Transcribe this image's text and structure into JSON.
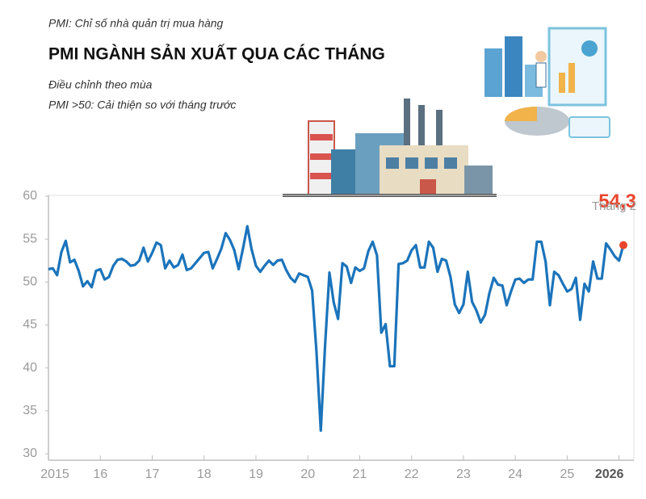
{
  "chart_data": {
    "type": "line",
    "note": "PMI: Chỉ số nhà quản trị mua hàng",
    "title": "PMI NGÀNH SẢN XUẤT QUA CÁC THÁNG",
    "subtitles": [
      "Điều chỉnh theo mùa",
      "PMI >50: Cải thiện so với tháng trước"
    ],
    "annotations": [
      "Tháng 2"
    ],
    "categories": [
      "2015",
      null,
      null,
      null,
      null,
      null,
      null,
      null,
      null,
      null,
      null,
      null,
      "16",
      null,
      null,
      null,
      null,
      null,
      null,
      null,
      null,
      null,
      null,
      null,
      "17",
      null,
      null,
      null,
      null,
      null,
      null,
      null,
      null,
      null,
      null,
      null,
      "18",
      null,
      null,
      null,
      null,
      null,
      null,
      null,
      null,
      null,
      null,
      null,
      "19",
      null,
      null,
      null,
      null,
      null,
      null,
      null,
      null,
      null,
      null,
      null,
      "20",
      null,
      null,
      null,
      null,
      null,
      null,
      null,
      null,
      null,
      null,
      null,
      "21",
      null,
      null,
      null,
      null,
      null,
      null,
      null,
      null,
      null,
      null,
      null,
      "22",
      null,
      null,
      null,
      null,
      null,
      null,
      null,
      null,
      null,
      null,
      null,
      "23",
      null,
      null,
      null,
      null,
      null,
      null,
      null,
      null,
      null,
      null,
      null,
      "24",
      null,
      null,
      null,
      null,
      null,
      null,
      null,
      null,
      null,
      null,
      null,
      "25",
      null,
      null,
      null,
      null,
      null,
      null,
      null,
      null,
      null,
      null,
      null,
      "2026",
      null
    ],
    "series": [
      {
        "color": "#1b74bb",
        "values": [
          51.5,
          51.6,
          50.8,
          53.5,
          54.8,
          52.3,
          52.6,
          51.3,
          49.5,
          50.1,
          49.4,
          51.3,
          51.5,
          50.3,
          50.6,
          51.9,
          52.6,
          52.7,
          52.4,
          51.9,
          52.0,
          52.5,
          54.0,
          52.4,
          53.4,
          54.6,
          54.3,
          51.6,
          52.5,
          51.7,
          52.0,
          53.2,
          51.4,
          51.6,
          52.2,
          52.8,
          53.4,
          53.5,
          51.6,
          52.7,
          53.9,
          55.7,
          54.9,
          53.7,
          51.5,
          53.9,
          56.5,
          53.8,
          51.9,
          51.2,
          51.9,
          52.5,
          52.0,
          52.5,
          52.6,
          51.4,
          50.5,
          50.0,
          51.0,
          50.8,
          50.6,
          49.0,
          41.9,
          32.7,
          42.7,
          51.1,
          47.6,
          45.7,
          52.2,
          51.8,
          49.9,
          51.7,
          51.3,
          51.6,
          53.6,
          54.7,
          53.1,
          44.1,
          45.1,
          40.2,
          40.2,
          52.1,
          52.2,
          52.5,
          53.7,
          54.3,
          51.7,
          51.7,
          54.7,
          54.0,
          51.2,
          52.7,
          52.5,
          50.6,
          47.4,
          46.4,
          47.4,
          51.2,
          47.7,
          46.7,
          45.3,
          46.2,
          48.7,
          50.5,
          49.7,
          49.6,
          47.3,
          48.9,
          50.3,
          50.4,
          49.9,
          50.3,
          50.3,
          54.7,
          54.7,
          52.4,
          47.3,
          51.2,
          50.8,
          49.8,
          48.9,
          49.2,
          50.5,
          45.6,
          49.8,
          48.9,
          52.4,
          50.4,
          50.4,
          54.5,
          53.8,
          53.0,
          52.5,
          54.3
        ],
        "value_labels": [
          null,
          null,
          null,
          null,
          null,
          null,
          null,
          null,
          null,
          null,
          null,
          null,
          null,
          null,
          null,
          null,
          null,
          null,
          null,
          null,
          null,
          null,
          null,
          null,
          null,
          null,
          null,
          null,
          null,
          null,
          null,
          null,
          null,
          null,
          null,
          null,
          null,
          null,
          null,
          null,
          null,
          null,
          null,
          null,
          null,
          null,
          null,
          null,
          null,
          null,
          null,
          null,
          null,
          null,
          null,
          null,
          null,
          null,
          null,
          null,
          null,
          null,
          null,
          null,
          null,
          null,
          null,
          null,
          null,
          null,
          null,
          null,
          null,
          null,
          null,
          null,
          null,
          null,
          null,
          null,
          null,
          null,
          null,
          null,
          null,
          null,
          null,
          null,
          null,
          null,
          null,
          null,
          null,
          null,
          null,
          null,
          null,
          null,
          null,
          null,
          null,
          null,
          null,
          null,
          null,
          null,
          null,
          null,
          null,
          null,
          null,
          null,
          null,
          null,
          null,
          null,
          null,
          null,
          null,
          null,
          null,
          null,
          null,
          null,
          null,
          null,
          null,
          null,
          null,
          null,
          null,
          null,
          null,
          "54,3"
        ],
        "marker_color": "#e8452c"
      }
    ],
    "ylim": [
      30,
      60
    ],
    "yticks": [
      30,
      35,
      40,
      45,
      50,
      55,
      60
    ],
    "grid": false
  }
}
